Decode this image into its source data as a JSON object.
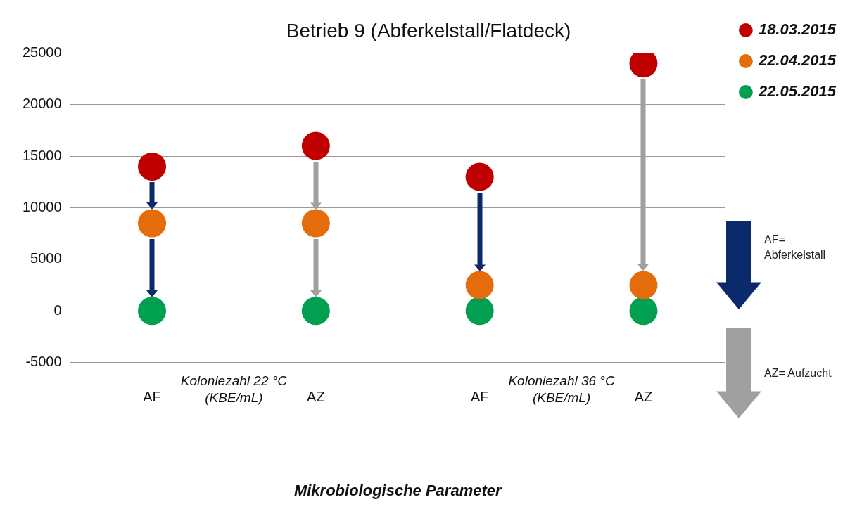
{
  "chart_data": {
    "type": "scatter",
    "title": "Betrieb 9 (Abferkelstall/Flatdeck)",
    "xlabel": "Mikrobiologische Parameter",
    "categories": [
      "AF",
      "AZ",
      "AF",
      "AZ"
    ],
    "series": [
      {
        "name": "18.03.2015",
        "color": "#c00000",
        "values": [
          14000,
          16000,
          13000,
          24000
        ]
      },
      {
        "name": "22.04.2015",
        "color": "#e46c0a",
        "values": [
          8500,
          8500,
          2500,
          2500
        ]
      },
      {
        "name": "22.05.2015",
        "color": "#00a050",
        "values": [
          0,
          0,
          0,
          0
        ]
      }
    ],
    "ylim": [
      -5000,
      25000
    ],
    "yticks": [
      -5000,
      0,
      5000,
      10000,
      15000,
      20000,
      25000
    ],
    "grid": "y",
    "legend": "top right",
    "marker": "circle",
    "annotations": [
      "Koloniezahl 22 °C\n(KBE/mL)",
      "Koloniezahl 36 °C\n(KBE/mL)",
      "AF=\nAbferkelstall",
      "AZ= Aufzucht"
    ]
  }
}
